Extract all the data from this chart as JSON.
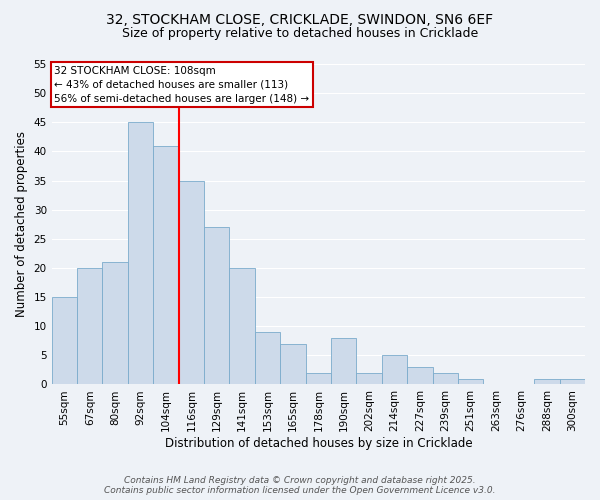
{
  "title": "32, STOCKHAM CLOSE, CRICKLADE, SWINDON, SN6 6EF",
  "subtitle": "Size of property relative to detached houses in Cricklade",
  "xlabel": "Distribution of detached houses by size in Cricklade",
  "ylabel": "Number of detached properties",
  "categories": [
    "55sqm",
    "67sqm",
    "80sqm",
    "92sqm",
    "104sqm",
    "116sqm",
    "129sqm",
    "141sqm",
    "153sqm",
    "165sqm",
    "178sqm",
    "190sqm",
    "202sqm",
    "214sqm",
    "227sqm",
    "239sqm",
    "251sqm",
    "263sqm",
    "276sqm",
    "288sqm",
    "300sqm"
  ],
  "values": [
    15,
    20,
    21,
    45,
    41,
    35,
    27,
    20,
    9,
    7,
    2,
    8,
    2,
    5,
    3,
    2,
    1,
    0,
    0,
    1,
    1
  ],
  "bar_color": "#cddaea",
  "bar_edge_color": "#7aabcc",
  "red_line_x": 4.5,
  "annotation_line1": "32 STOCKHAM CLOSE: 108sqm",
  "annotation_line2": "← 43% of detached houses are smaller (113)",
  "annotation_line3": "56% of semi-detached houses are larger (148) →",
  "annotation_box_color": "white",
  "annotation_box_edge_color": "#cc0000",
  "ylim": [
    0,
    55
  ],
  "yticks": [
    0,
    5,
    10,
    15,
    20,
    25,
    30,
    35,
    40,
    45,
    50,
    55
  ],
  "background_color": "#eef2f7",
  "grid_color": "white",
  "footer_text": "Contains HM Land Registry data © Crown copyright and database right 2025.\nContains public sector information licensed under the Open Government Licence v3.0.",
  "title_fontsize": 10,
  "subtitle_fontsize": 9,
  "axis_label_fontsize": 8.5,
  "tick_fontsize": 7.5,
  "annotation_fontsize": 7.5,
  "footer_fontsize": 6.5
}
